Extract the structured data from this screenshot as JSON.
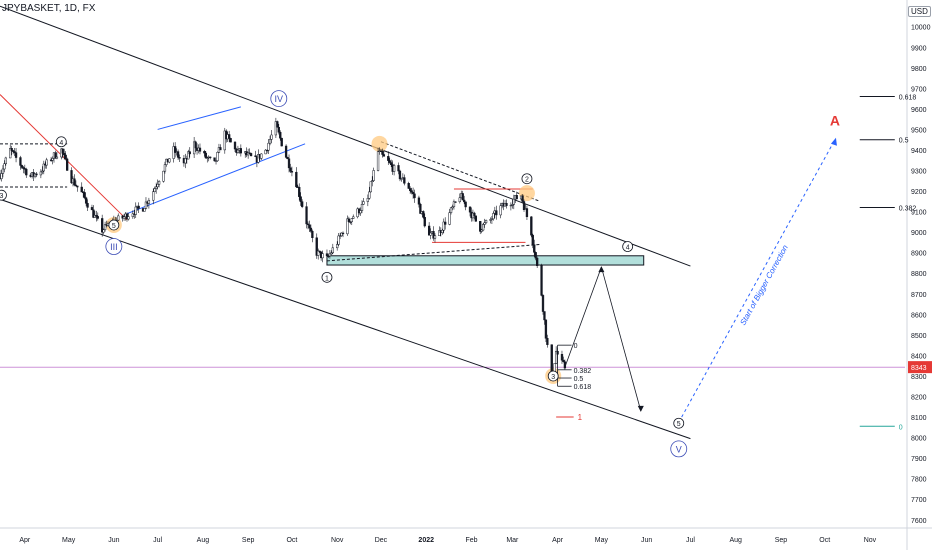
{
  "header": {
    "symbol": "JPYBASKET, 1D, FX",
    "currency": "USD"
  },
  "colors": {
    "up_candle": "#ffffff",
    "candle_stroke": "#131722",
    "down_candle": "#131722",
    "channel": "#131722",
    "blue_line": "#2962ff",
    "red_line": "#e53935",
    "price_line": "#9c27b0",
    "zone_fill": "#b2dfdb",
    "orange_circle": "#ffc980",
    "fib_axis": "#131722",
    "fib_zero": "#26a69a",
    "wave_label": "#131722",
    "wave_label_big": "#3a4bb5",
    "big_a": "#e53935",
    "dashed_blue": "#2962ff",
    "axis_text": "#131722",
    "badge_bg": "#e53935"
  },
  "current_price": {
    "value": 8343,
    "label": "8343"
  },
  "chart_data": {
    "type": "candlestick",
    "title": "",
    "xlabel": "",
    "ylabel": "",
    "ylim": [
      7560,
      10130
    ],
    "y_ticks": [
      7600,
      7700,
      7800,
      7900,
      8000,
      8100,
      8200,
      8300,
      8400,
      8500,
      8600,
      8700,
      8800,
      8900,
      9000,
      9100,
      9200,
      9300,
      9400,
      9500,
      9600,
      9700,
      9800,
      9900,
      10000
    ],
    "x_range": [
      "2021-03-15",
      "2022-11-25"
    ],
    "x_ticks": [
      {
        "label": "Apr",
        "date": "2021-04-01"
      },
      {
        "label": "May",
        "date": "2021-05-01"
      },
      {
        "label": "Jun",
        "date": "2021-06-01"
      },
      {
        "label": "Jul",
        "date": "2021-07-01"
      },
      {
        "label": "Aug",
        "date": "2021-08-01"
      },
      {
        "label": "Sep",
        "date": "2021-09-01"
      },
      {
        "label": "Oct",
        "date": "2021-10-01"
      },
      {
        "label": "Nov",
        "date": "2021-11-01"
      },
      {
        "label": "Dec",
        "date": "2021-12-01"
      },
      {
        "label": "2022",
        "date": "2022-01-01"
      },
      {
        "label": "Feb",
        "date": "2022-02-01"
      },
      {
        "label": "Mar",
        "date": "2022-03-01"
      },
      {
        "label": "Apr",
        "date": "2022-04-01"
      },
      {
        "label": "May",
        "date": "2022-05-01"
      },
      {
        "label": "Jun",
        "date": "2022-06-01"
      },
      {
        "label": "Jul",
        "date": "2022-07-01"
      },
      {
        "label": "Aug",
        "date": "2022-08-01"
      },
      {
        "label": "Sep",
        "date": "2022-09-01"
      },
      {
        "label": "Oct",
        "date": "2022-10-01"
      },
      {
        "label": "Nov",
        "date": "2022-11-01"
      }
    ],
    "price_path": [
      [
        "2021-03-15",
        9280
      ],
      [
        "2021-03-22",
        9400
      ],
      [
        "2021-03-29",
        9330
      ],
      [
        "2021-04-05",
        9270
      ],
      [
        "2021-04-12",
        9300
      ],
      [
        "2021-04-19",
        9360
      ],
      [
        "2021-04-26",
        9400
      ],
      [
        "2021-05-03",
        9260
      ],
      [
        "2021-05-10",
        9190
      ],
      [
        "2021-05-17",
        9100
      ],
      [
        "2021-05-24",
        9010
      ],
      [
        "2021-05-31",
        9050
      ],
      [
        "2021-06-07",
        9070
      ],
      [
        "2021-06-14",
        9100
      ],
      [
        "2021-06-21",
        9120
      ],
      [
        "2021-06-28",
        9200
      ],
      [
        "2021-07-05",
        9310
      ],
      [
        "2021-07-12",
        9400
      ],
      [
        "2021-07-19",
        9330
      ],
      [
        "2021-07-26",
        9430
      ],
      [
        "2021-08-02",
        9370
      ],
      [
        "2021-08-09",
        9330
      ],
      [
        "2021-08-16",
        9480
      ],
      [
        "2021-08-23",
        9400
      ],
      [
        "2021-08-30",
        9380
      ],
      [
        "2021-09-06",
        9350
      ],
      [
        "2021-09-13",
        9400
      ],
      [
        "2021-09-20",
        9520
      ],
      [
        "2021-09-27",
        9370
      ],
      [
        "2021-10-04",
        9240
      ],
      [
        "2021-10-11",
        9050
      ],
      [
        "2021-10-18",
        8900
      ],
      [
        "2021-10-25",
        8870
      ],
      [
        "2021-11-01",
        8950
      ],
      [
        "2021-11-08",
        9050
      ],
      [
        "2021-11-15",
        9100
      ],
      [
        "2021-11-22",
        9160
      ],
      [
        "2021-11-29",
        9390
      ],
      [
        "2021-12-06",
        9340
      ],
      [
        "2021-12-13",
        9280
      ],
      [
        "2021-12-20",
        9220
      ],
      [
        "2021-12-27",
        9130
      ],
      [
        "2022-01-03",
        8980
      ],
      [
        "2022-01-10",
        9000
      ],
      [
        "2022-01-17",
        9090
      ],
      [
        "2022-01-24",
        9180
      ],
      [
        "2022-01-31",
        9100
      ],
      [
        "2022-02-07",
        9020
      ],
      [
        "2022-02-14",
        9060
      ],
      [
        "2022-02-21",
        9120
      ],
      [
        "2022-02-28",
        9150
      ],
      [
        "2022-03-07",
        9180
      ],
      [
        "2022-03-14",
        9000
      ],
      [
        "2022-03-21",
        8700
      ],
      [
        "2022-03-24",
        8500
      ],
      [
        "2022-03-28",
        8280
      ],
      [
        "2022-03-31",
        8420
      ],
      [
        "2022-04-04",
        8360
      ],
      [
        "2022-04-06",
        8343
      ]
    ],
    "channel_upper": [
      [
        "2021-03-15",
        10100
      ],
      [
        "2022-07-01",
        8835
      ]
    ],
    "channel_lower": [
      [
        "2021-03-15",
        9160
      ],
      [
        "2022-07-01",
        7995
      ]
    ],
    "blue_lines": [
      {
        "from": [
          "2021-07-01",
          9500
        ],
        "to": [
          "2021-08-27",
          9610
        ]
      },
      {
        "from": [
          "2021-06-10",
          9090
        ],
        "to": [
          "2021-10-10",
          9430
        ]
      }
    ],
    "red_trend": {
      "from": [
        "2021-03-15",
        9670
      ],
      "to": [
        "2021-06-10",
        9060
      ]
    },
    "dashed_lines": [
      {
        "from": [
          "2021-03-15",
          9430
        ],
        "to": [
          "2021-04-30",
          9430
        ]
      },
      {
        "from": [
          "2021-03-15",
          9220
        ],
        "to": [
          "2021-04-30",
          9220
        ]
      },
      {
        "from": [
          "2021-12-01",
          9440
        ],
        "to": [
          "2022-03-20",
          9150
        ]
      },
      {
        "from": [
          "2021-10-25",
          8860
        ],
        "to": [
          "2022-03-20",
          8940
        ]
      }
    ],
    "red_levels": [
      {
        "from": [
          "2022-01-20",
          9210
        ],
        "to": [
          "2022-03-15",
          9210
        ]
      },
      {
        "from": [
          "2022-01-05",
          8950
        ],
        "to": [
          "2022-03-10",
          8950
        ]
      },
      {
        "from": [
          "2022-03-31",
          8100
        ],
        "to": [
          "2022-04-12",
          8100
        ],
        "label": "1"
      }
    ],
    "support_zone": {
      "from": "2021-10-25",
      "to": "2022-05-30",
      "low": 8840,
      "high": 8885
    },
    "projection_path": [
      [
        "2022-04-06",
        8343
      ],
      [
        "2022-05-01",
        8830
      ],
      [
        "2022-05-28",
        8130
      ]
    ],
    "bigger_correction": {
      "from": [
        "2022-06-25",
        8100
      ],
      "to": [
        "2022-10-08",
        9450
      ],
      "label": "Start of Bigger Correction"
    },
    "local_fib": {
      "x": "2022-04-01",
      "levels": [
        {
          "label": "0",
          "value": 8450
        },
        {
          "label": "0.382",
          "value": 8330
        },
        {
          "label": "0.5",
          "value": 8290
        },
        {
          "label": "0.618",
          "value": 8250
        }
      ]
    },
    "big_fib": {
      "levels": [
        {
          "label": "0.618",
          "value": 9660
        },
        {
          "label": "0.5",
          "value": 9450
        },
        {
          "label": "0.382",
          "value": 9120
        },
        {
          "label": "0",
          "value": 8055
        }
      ],
      "from": "2022-10-25",
      "to": "2022-11-18"
    },
    "wave_labels": [
      {
        "text": "3",
        "date": "2021-03-16",
        "price": 9180,
        "style": "small"
      },
      {
        "text": "4",
        "date": "2021-04-26",
        "price": 9440,
        "style": "small"
      },
      {
        "text": "5",
        "date": "2021-06-01",
        "price": 9035,
        "style": "small",
        "highlight": true
      },
      {
        "text": "III",
        "date": "2021-06-01",
        "price": 8930,
        "style": "big"
      },
      {
        "text": "IV",
        "date": "2021-09-22",
        "price": 9650,
        "style": "big"
      },
      {
        "text": "1",
        "date": "2021-10-25",
        "price": 8780,
        "style": "small"
      },
      {
        "text": "2",
        "date": "2022-03-11",
        "price": 9260,
        "style": "small"
      },
      {
        "text": "3",
        "date": "2022-03-29",
        "price": 8300,
        "style": "small",
        "highlight": true
      },
      {
        "text": "4",
        "date": "2022-05-19",
        "price": 8930,
        "style": "small"
      },
      {
        "text": "5",
        "date": "2022-06-23",
        "price": 8070,
        "style": "small"
      },
      {
        "text": "V",
        "date": "2022-06-23",
        "price": 7945,
        "style": "big"
      }
    ],
    "highlight_circles": [
      {
        "date": "2021-11-30",
        "price": 9430
      },
      {
        "date": "2022-03-11",
        "price": 9190
      }
    ],
    "big_label": {
      "text": "A",
      "date": "2022-10-08",
      "price": 9520
    }
  }
}
